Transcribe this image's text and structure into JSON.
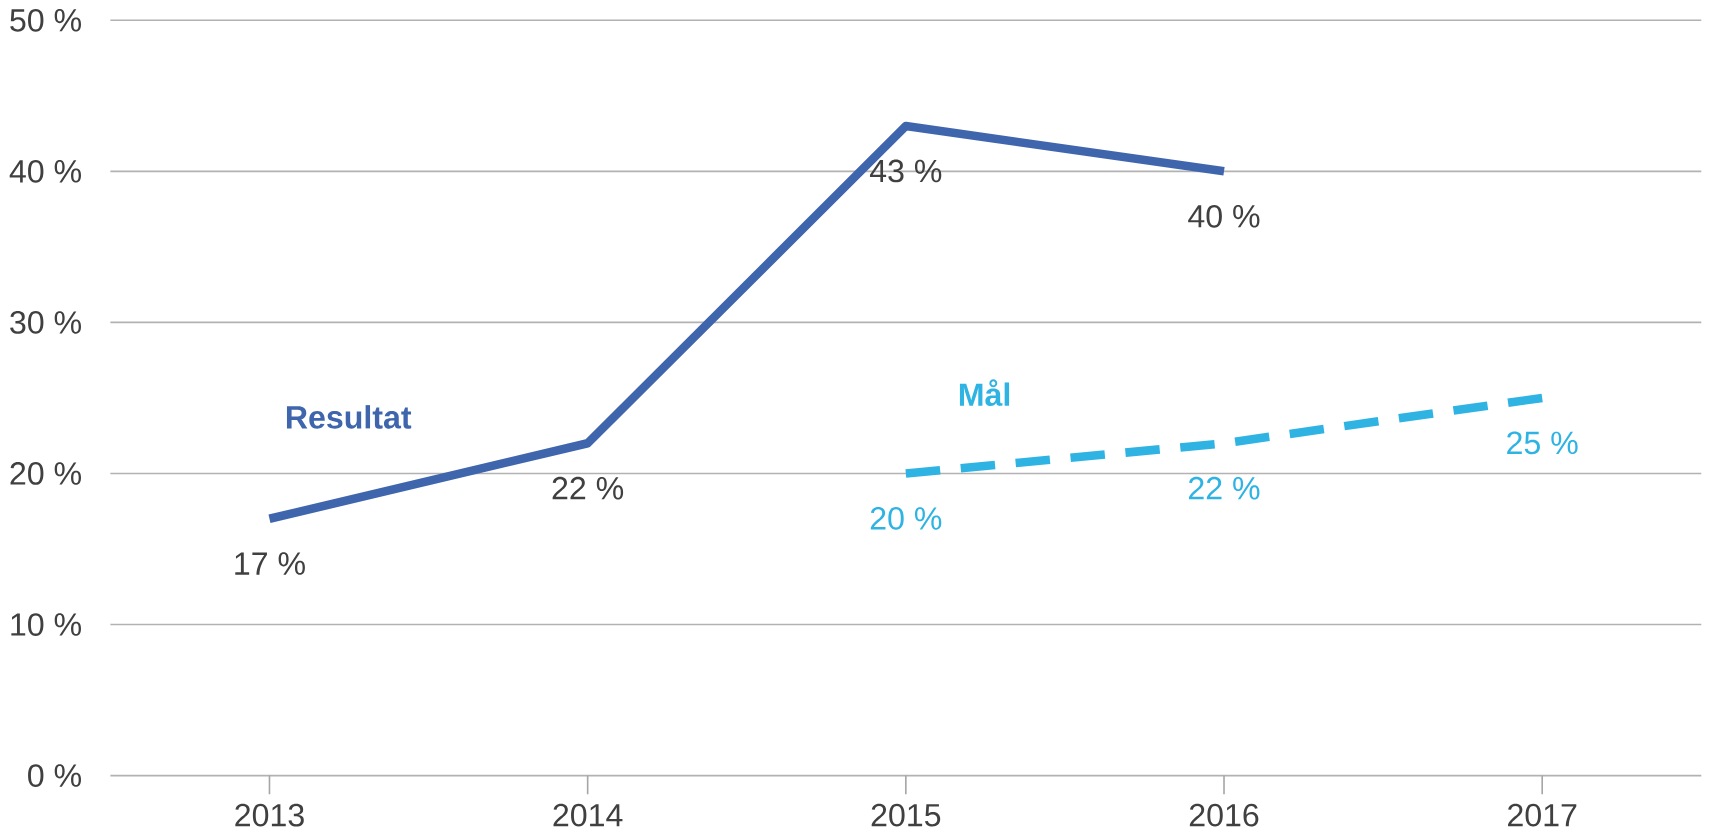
{
  "chart_data": {
    "type": "line",
    "categories": [
      "2013",
      "2014",
      "2015",
      "2016",
      "2017"
    ],
    "series": [
      {
        "name": "Resultat",
        "color": "#3f66ad",
        "line_style": "solid",
        "values": [
          17,
          22,
          43,
          40,
          null
        ],
        "value_labels": [
          "17 %",
          "22 %",
          "43 %",
          "40 %",
          null
        ]
      },
      {
        "name": "Mål",
        "color": "#2fb3e3",
        "line_style": "dashed",
        "values": [
          null,
          null,
          20,
          22,
          25
        ],
        "value_labels": [
          null,
          null,
          "20 %",
          "22 %",
          "25 %"
        ]
      }
    ],
    "ylim": [
      0,
      50
    ],
    "yticks": [
      {
        "value": 0,
        "label": "0 %"
      },
      {
        "value": 10,
        "label": "10 %"
      },
      {
        "value": 20,
        "label": "20 %"
      },
      {
        "value": 30,
        "label": "30 %"
      },
      {
        "value": 40,
        "label": "40 %"
      },
      {
        "value": 50,
        "label": "50 %"
      }
    ],
    "grid": "y",
    "legend": false,
    "marker": "none"
  }
}
